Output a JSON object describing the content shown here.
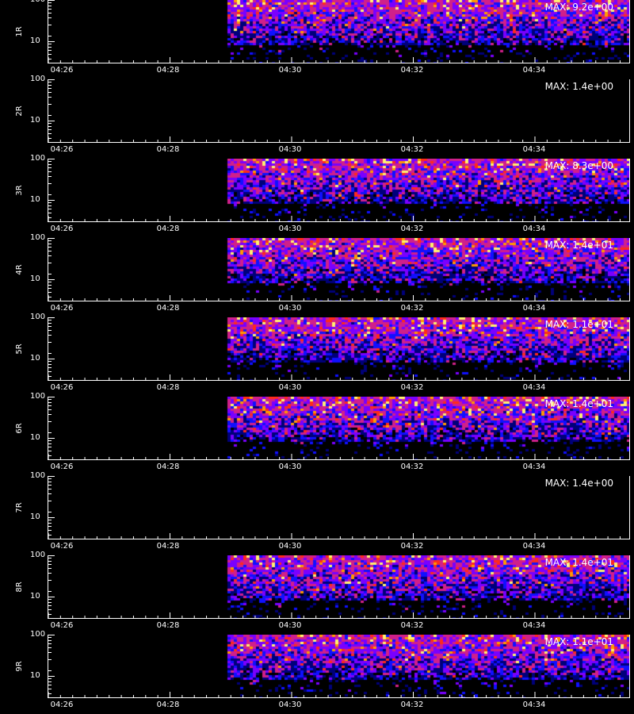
{
  "x_tick_labels": [
    "04:26",
    "04:28",
    "04:30",
    "04:32",
    "04:34"
  ],
  "y_tick_labels": [
    "100",
    "10"
  ],
  "panels": [
    {
      "label": "1R",
      "max_label": "MAX: 9.2e+00"
    },
    {
      "label": "2R",
      "max_label": "MAX: 1.4e+00"
    },
    {
      "label": "3R",
      "max_label": "MAX: 8.3e+00"
    },
    {
      "label": "4R",
      "max_label": "MAX: 1.4e+01"
    },
    {
      "label": "5R",
      "max_label": "MAX: 1.1e+01"
    },
    {
      "label": "6R",
      "max_label": "MAX: 1.4e+01"
    },
    {
      "label": "7R",
      "max_label": "MAX: 1.4e+00"
    },
    {
      "label": "8R",
      "max_label": "MAX: 1.4e+01"
    },
    {
      "label": "9R",
      "max_label": "MAX: 1.1e+01"
    }
  ],
  "chart_data": {
    "type": "heatmap",
    "x_ticks": [
      "04:26",
      "04:28",
      "04:30",
      "04:32",
      "04:34"
    ],
    "y_ticks": [
      100,
      10
    ],
    "y_scale": "log",
    "data_start_time": "04:28:45",
    "series": [
      {
        "name": "1R",
        "max": 9.2
      },
      {
        "name": "2R",
        "max": 1.4
      },
      {
        "name": "3R",
        "max": 8.3
      },
      {
        "name": "4R",
        "max": 14
      },
      {
        "name": "5R",
        "max": 11
      },
      {
        "name": "6R",
        "max": 14
      },
      {
        "name": "7R",
        "max": 1.4
      },
      {
        "name": "8R",
        "max": 14
      },
      {
        "name": "9R",
        "max": 11
      }
    ],
    "colormap": [
      "#000000",
      "#00007a",
      "#1010ff",
      "#7a00ff",
      "#d0208a",
      "#ff2a1a",
      "#ff9a00",
      "#fff070"
    ]
  }
}
